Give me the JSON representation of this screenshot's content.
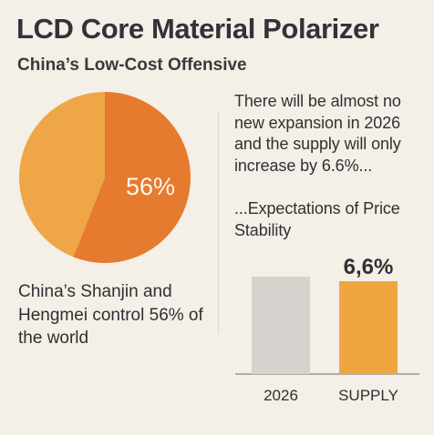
{
  "header": {
    "title": "LCD Core Material Polarizer",
    "subtitle": "China’s Low-Cost Offensive"
  },
  "left_panel": {
    "caption": "China’s Shanjin and Hengmei control 56% of the world"
  },
  "right_panel": {
    "text_1": "There will be almost no new expansion in 2026 and the supply will only increase by 6.6%...",
    "text_2": "...Expectations of Price Stability"
  },
  "colors": {
    "background": "#f4efe7",
    "pie_orange": "#e67a2f",
    "pie_light_orange": "#eea647",
    "bar_gray": "#d6d3cf",
    "bar_orange": "#f0a640",
    "text_dark": "#2d2f33",
    "axis": "#6f6a63"
  },
  "chart_data": [
    {
      "type": "pie",
      "slices": [
        {
          "label": "56%",
          "value": 56,
          "color": "#e67a2f"
        },
        {
          "label": "",
          "value": 44,
          "color": "#eea647"
        }
      ],
      "annotation": "56%"
    },
    {
      "type": "bar",
      "categories": [
        "2026",
        "SUPPLY"
      ],
      "values": [
        null,
        6.6
      ],
      "labels": [
        "",
        "6,6%"
      ],
      "colors": [
        "#d6d3cf",
        "#f0a640"
      ],
      "xlabel": "",
      "ylabel": ""
    }
  ]
}
